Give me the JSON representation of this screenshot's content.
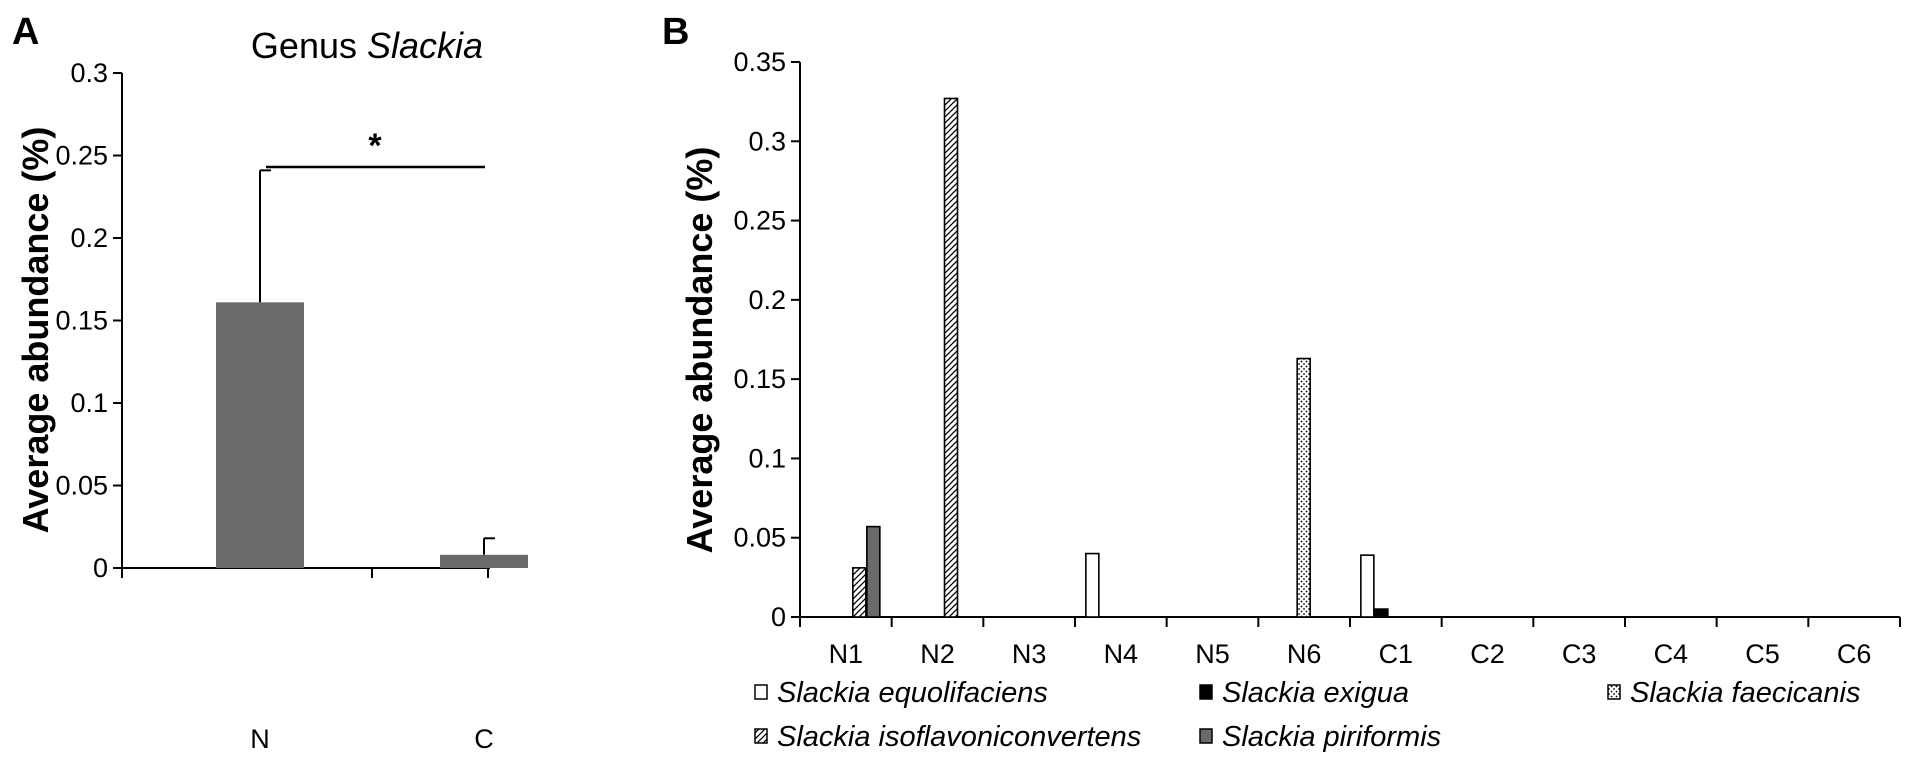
{
  "panel_a_letter": "A",
  "panel_b_letter": "B",
  "chart_data": [
    {
      "type": "bar",
      "title_prefix": "Genus ",
      "title_italic": "Slackia",
      "xlabel": "",
      "ylabel": "Average abundance (%)",
      "categories": [
        "N",
        "C"
      ],
      "values": [
        0.161,
        0.008
      ],
      "error": [
        0.08,
        0.01
      ],
      "ylim": [
        0,
        0.3
      ],
      "yticks": [
        0,
        0.05,
        0.1,
        0.15,
        0.2,
        0.25,
        0.3
      ],
      "ytick_labels": [
        "0",
        "0.05",
        "0.1",
        "0.15",
        "0.2",
        "0.25",
        "0.3"
      ],
      "significance": "*",
      "bar_color": "#6a6a6a",
      "grid": false
    },
    {
      "type": "bar",
      "xlabel": "",
      "ylabel": "Average abundance (%)",
      "categories": [
        "N1",
        "N2",
        "N3",
        "N4",
        "N5",
        "N6",
        "C1",
        "C2",
        "C3",
        "C4",
        "C5",
        "C6"
      ],
      "ylim": [
        0,
        0.35
      ],
      "yticks": [
        0,
        0.05,
        0.1,
        0.15,
        0.2,
        0.25,
        0.3,
        0.35
      ],
      "ytick_labels": [
        "0",
        "0.05",
        "0.1",
        "0.15",
        "0.2",
        "0.25",
        "0.3",
        "0.35"
      ],
      "grid": false,
      "legend_position": "bottom",
      "series": [
        {
          "name": "Slackia equolifaciens",
          "pattern": "white",
          "values": [
            0,
            0,
            0,
            0.04,
            0,
            0,
            0.039,
            0,
            0,
            0,
            0,
            0
          ]
        },
        {
          "name": "Slackia exigua",
          "pattern": "black",
          "values": [
            0,
            0,
            0,
            0,
            0,
            0,
            0.005,
            0,
            0,
            0,
            0,
            0
          ]
        },
        {
          "name": "Slackia faecicanis",
          "pattern": "dots",
          "values": [
            0,
            0,
            0,
            0,
            0,
            0.163,
            0,
            0,
            0,
            0,
            0,
            0
          ]
        },
        {
          "name": "Slackia isoflavoniconvertens",
          "pattern": "hatch",
          "values": [
            0.031,
            0.327,
            0,
            0,
            0,
            0,
            0,
            0,
            0,
            0,
            0,
            0
          ]
        },
        {
          "name": "Slackia piriformis",
          "pattern": "gray",
          "values": [
            0.057,
            0,
            0,
            0,
            0,
            0,
            0,
            0,
            0,
            0,
            0,
            0
          ]
        }
      ]
    }
  ]
}
